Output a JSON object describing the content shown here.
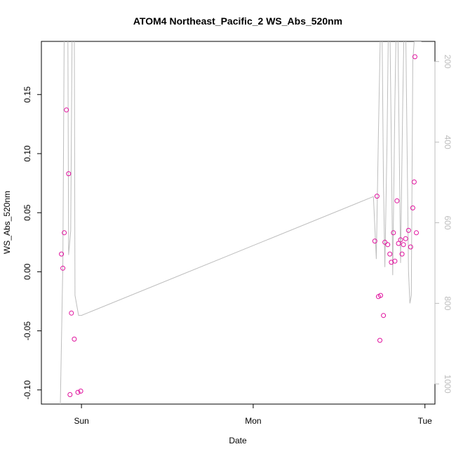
{
  "chart_data": {
    "type": "scatter",
    "title": "ATOM4 Northeast_Pacific_2 WS_Abs_520nm",
    "xlabel": "Date",
    "ylabel": "WS_Abs_520nm",
    "x_ticks": [
      {
        "label": "Sun",
        "value": 0
      },
      {
        "label": "Mon",
        "value": 24
      },
      {
        "label": "Tue",
        "value": 48
      }
    ],
    "xlim": [
      -5.6,
      49.4
    ],
    "y_ticks": [
      -0.1,
      -0.05,
      0.0,
      0.05,
      0.1,
      0.15
    ],
    "y_tick_labels": [
      "-0.10",
      "-0.05",
      "0.00",
      "0.05",
      "0.10",
      "0.15"
    ],
    "ylim": [
      -0.112,
      0.195
    ],
    "y2_ticks": [
      200,
      400,
      600,
      800,
      1000
    ],
    "y2_tick_labels": [
      "200",
      "400",
      "600",
      "800",
      "1000"
    ],
    "y2lim": [
      1050,
      150
    ],
    "point_color": "#e0119d",
    "line_color": "#bdbdbd",
    "points": [
      {
        "x": -2.8,
        "y": 0.015
      },
      {
        "x": -2.6,
        "y": 0.003
      },
      {
        "x": -2.4,
        "y": 0.033
      },
      {
        "x": -2.1,
        "y": 0.137
      },
      {
        "x": -1.8,
        "y": 0.083
      },
      {
        "x": -1.6,
        "y": -0.104
      },
      {
        "x": -1.4,
        "y": -0.035
      },
      {
        "x": -1.0,
        "y": -0.057
      },
      {
        "x": -0.5,
        "y": -0.102
      },
      {
        "x": -0.1,
        "y": -0.101
      },
      {
        "x": 41.0,
        "y": 0.026
      },
      {
        "x": 41.3,
        "y": 0.064
      },
      {
        "x": 41.5,
        "y": -0.021
      },
      {
        "x": 41.8,
        "y": -0.02
      },
      {
        "x": 41.7,
        "y": -0.058
      },
      {
        "x": 42.2,
        "y": -0.037
      },
      {
        "x": 42.4,
        "y": 0.025
      },
      {
        "x": 42.8,
        "y": 0.023
      },
      {
        "x": 43.1,
        "y": 0.015
      },
      {
        "x": 43.3,
        "y": 0.008
      },
      {
        "x": 43.6,
        "y": 0.033
      },
      {
        "x": 43.8,
        "y": 0.009
      },
      {
        "x": 44.1,
        "y": 0.06
      },
      {
        "x": 44.3,
        "y": 0.024
      },
      {
        "x": 44.6,
        "y": 0.027
      },
      {
        "x": 44.8,
        "y": 0.015
      },
      {
        "x": 45.0,
        "y": 0.023
      },
      {
        "x": 45.3,
        "y": 0.028
      },
      {
        "x": 45.7,
        "y": 0.035
      },
      {
        "x": 46.0,
        "y": 0.021
      },
      {
        "x": 46.3,
        "y": 0.054
      },
      {
        "x": 46.5,
        "y": 0.076
      },
      {
        "x": 46.6,
        "y": 0.182
      },
      {
        "x": 46.8,
        "y": 0.033
      }
    ],
    "line_series": [
      {
        "x": -3.0,
        "y": 1100
      },
      {
        "x": -2.6,
        "y": 700
      },
      {
        "x": -2.4,
        "y": 100
      },
      {
        "x": -1.9,
        "y": 100
      },
      {
        "x": -1.8,
        "y": 680
      },
      {
        "x": -1.5,
        "y": 620
      },
      {
        "x": -1.3,
        "y": 100
      },
      {
        "x": -1.0,
        "y": 100
      },
      {
        "x": -0.9,
        "y": 780
      },
      {
        "x": -0.4,
        "y": 830
      },
      {
        "x": 0.0,
        "y": 830
      },
      {
        "x": 40.8,
        "y": 535
      },
      {
        "x": 41.2,
        "y": 690
      },
      {
        "x": 41.5,
        "y": 380
      },
      {
        "x": 41.8,
        "y": 100
      },
      {
        "x": 42.0,
        "y": 100
      },
      {
        "x": 42.2,
        "y": 500
      },
      {
        "x": 42.4,
        "y": 710
      },
      {
        "x": 42.7,
        "y": 400
      },
      {
        "x": 42.9,
        "y": 100
      },
      {
        "x": 43.1,
        "y": 100
      },
      {
        "x": 43.3,
        "y": 400
      },
      {
        "x": 43.5,
        "y": 730
      },
      {
        "x": 43.8,
        "y": 300
      },
      {
        "x": 44.0,
        "y": 100
      },
      {
        "x": 44.2,
        "y": 100
      },
      {
        "x": 44.4,
        "y": 400
      },
      {
        "x": 44.6,
        "y": 700
      },
      {
        "x": 44.9,
        "y": 300
      },
      {
        "x": 45.1,
        "y": 100
      },
      {
        "x": 45.3,
        "y": 100
      },
      {
        "x": 45.5,
        "y": 400
      },
      {
        "x": 45.7,
        "y": 720
      },
      {
        "x": 45.9,
        "y": 800
      },
      {
        "x": 46.1,
        "y": 780
      },
      {
        "x": 46.3,
        "y": 200
      },
      {
        "x": 46.5,
        "y": 150
      },
      {
        "x": 47.5,
        "y": 150
      }
    ]
  }
}
